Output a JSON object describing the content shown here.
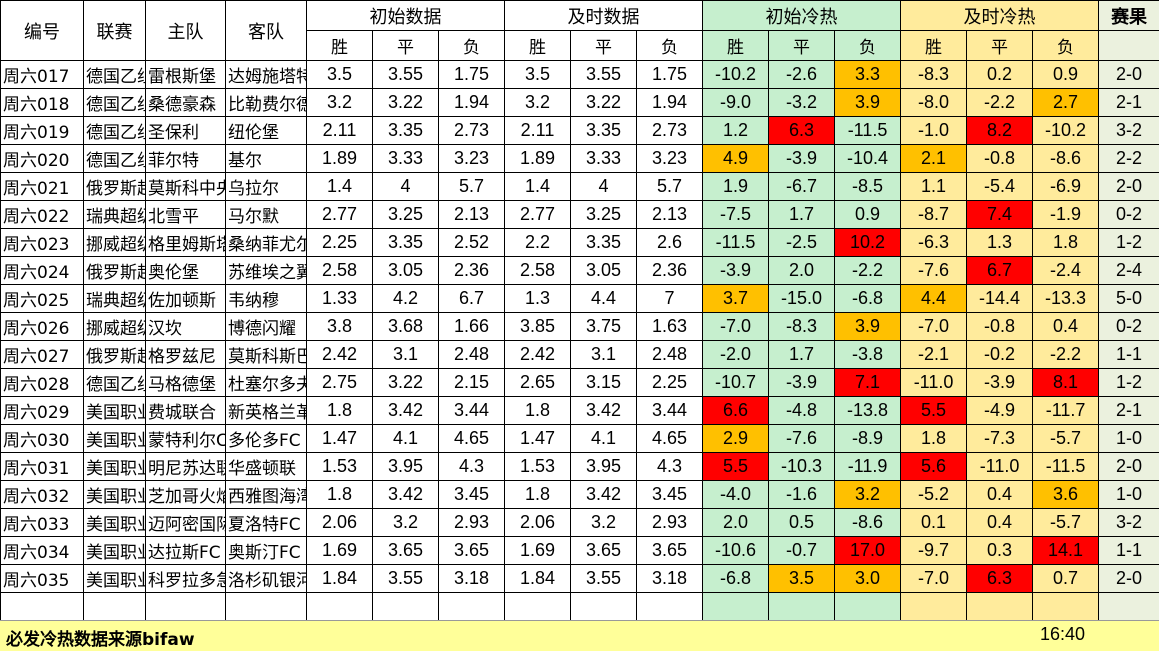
{
  "headers": {
    "id": "编号",
    "league": "联赛",
    "home": "主队",
    "away": "客队",
    "initial": "初始数据",
    "live": "及时数据",
    "initial_heat": "初始冷热",
    "live_heat": "及时冷热",
    "result": "赛果",
    "win": "胜",
    "draw": "平",
    "loss": "负"
  },
  "colors": {
    "green": "#c6efce",
    "yellow": "#ffeb9c",
    "orange": "#ffc000",
    "red": "#ff0000",
    "footer": "#ffff99"
  },
  "rows": [
    {
      "id": "周六017",
      "league": "德国乙组",
      "home": "雷根斯堡",
      "away": "达姆施塔特",
      "iw": "3.5",
      "id_": "3.55",
      "il": "1.75",
      "lw": "3.5",
      "ld": "3.55",
      "ll": "1.75",
      "hiw": "-10.2",
      "hid": "-2.6",
      "hil": "3.3",
      "hlw": "-8.3",
      "hld": "0.2",
      "hll": "0.9",
      "res": "2-0",
      "ci": [
        "",
        "",
        "orange"
      ],
      "cl": [
        "",
        "",
        ""
      ]
    },
    {
      "id": "周六018",
      "league": "德国乙组",
      "home": "桑德豪森",
      "away": "比勒费尔德",
      "iw": "3.2",
      "id_": "3.22",
      "il": "1.94",
      "lw": "3.2",
      "ld": "3.22",
      "ll": "1.94",
      "hiw": "-9.0",
      "hid": "-3.2",
      "hil": "3.9",
      "hlw": "-8.0",
      "hld": "-2.2",
      "hll": "2.7",
      "res": "2-1",
      "ci": [
        "",
        "",
        "orange"
      ],
      "cl": [
        "",
        "",
        "orange"
      ]
    },
    {
      "id": "周六019",
      "league": "德国乙组",
      "home": "圣保利",
      "away": "纽伦堡",
      "iw": "2.11",
      "id_": "3.35",
      "il": "2.73",
      "lw": "2.11",
      "ld": "3.35",
      "ll": "2.73",
      "hiw": "1.2",
      "hid": "6.3",
      "hil": "-11.5",
      "hlw": "-1.0",
      "hld": "8.2",
      "hll": "-10.2",
      "res": "3-2",
      "ci": [
        "",
        "red",
        ""
      ],
      "cl": [
        "",
        "red",
        ""
      ]
    },
    {
      "id": "周六020",
      "league": "德国乙组",
      "home": "菲尔特",
      "away": "基尔",
      "iw": "1.89",
      "id_": "3.33",
      "il": "3.23",
      "lw": "1.89",
      "ld": "3.33",
      "ll": "3.23",
      "hiw": "4.9",
      "hid": "-3.9",
      "hil": "-10.4",
      "hlw": "2.1",
      "hld": "-0.8",
      "hll": "-8.6",
      "res": "2-2",
      "ci": [
        "orange",
        "",
        ""
      ],
      "cl": [
        "orange",
        "",
        ""
      ]
    },
    {
      "id": "周六021",
      "league": "俄罗斯超",
      "home": "莫斯科中央",
      "away": "乌拉尔",
      "iw": "1.4",
      "id_": "4",
      "il": "5.7",
      "lw": "1.4",
      "ld": "4",
      "ll": "5.7",
      "hiw": "1.9",
      "hid": "-6.7",
      "hil": "-8.5",
      "hlw": "1.1",
      "hld": "-5.4",
      "hll": "-6.9",
      "res": "2-0",
      "ci": [
        "",
        "",
        ""
      ],
      "cl": [
        "",
        "",
        ""
      ]
    },
    {
      "id": "周六022",
      "league": "瑞典超级",
      "home": "北雪平",
      "away": "马尔默",
      "iw": "2.77",
      "id_": "3.25",
      "il": "2.13",
      "lw": "2.77",
      "ld": "3.25",
      "ll": "2.13",
      "hiw": "-7.5",
      "hid": "1.7",
      "hil": "0.9",
      "hlw": "-8.7",
      "hld": "7.4",
      "hll": "-1.9",
      "res": "0-2",
      "ci": [
        "",
        "",
        ""
      ],
      "cl": [
        "",
        "red",
        ""
      ]
    },
    {
      "id": "周六023",
      "league": "挪威超级",
      "home": "格里姆斯塔",
      "away": "桑纳菲尤尔",
      "iw": "2.25",
      "id_": "3.35",
      "il": "2.52",
      "lw": "2.2",
      "ld": "3.35",
      "ll": "2.6",
      "hiw": "-11.5",
      "hid": "-2.5",
      "hil": "10.2",
      "hlw": "-6.3",
      "hld": "1.3",
      "hll": "1.8",
      "res": "1-2",
      "ci": [
        "",
        "",
        "red"
      ],
      "cl": [
        "",
        "",
        ""
      ]
    },
    {
      "id": "周六024",
      "league": "俄罗斯超",
      "home": "奥伦堡",
      "away": "苏维埃之翼",
      "iw": "2.58",
      "id_": "3.05",
      "il": "2.36",
      "lw": "2.58",
      "ld": "3.05",
      "ll": "2.36",
      "hiw": "-3.9",
      "hid": "2.0",
      "hil": "-2.2",
      "hlw": "-7.6",
      "hld": "6.7",
      "hll": "-2.4",
      "res": "2-4",
      "ci": [
        "",
        "",
        ""
      ],
      "cl": [
        "",
        "red",
        ""
      ]
    },
    {
      "id": "周六025",
      "league": "瑞典超级",
      "home": "佐加顿斯",
      "away": "韦纳穆",
      "iw": "1.33",
      "id_": "4.2",
      "il": "6.7",
      "lw": "1.3",
      "ld": "4.4",
      "ll": "7",
      "hiw": "3.7",
      "hid": "-15.0",
      "hil": "-6.8",
      "hlw": "4.4",
      "hld": "-14.4",
      "hll": "-13.3",
      "res": "5-0",
      "ci": [
        "orange",
        "",
        ""
      ],
      "cl": [
        "orange",
        "",
        ""
      ]
    },
    {
      "id": "周六026",
      "league": "挪威超级",
      "home": "汉坎",
      "away": "博德闪耀",
      "iw": "3.8",
      "id_": "3.68",
      "il": "1.66",
      "lw": "3.85",
      "ld": "3.75",
      "ll": "1.63",
      "hiw": "-7.0",
      "hid": "-8.3",
      "hil": "3.9",
      "hlw": "-7.0",
      "hld": "-0.8",
      "hll": "0.4",
      "res": "0-2",
      "ci": [
        "",
        "",
        "orange"
      ],
      "cl": [
        "",
        "",
        ""
      ]
    },
    {
      "id": "周六027",
      "league": "俄罗斯超",
      "home": "格罗兹尼",
      "away": "莫斯科斯巴达",
      "iw": "2.42",
      "id_": "3.1",
      "il": "2.48",
      "lw": "2.42",
      "ld": "3.1",
      "ll": "2.48",
      "hiw": "-2.0",
      "hid": "1.7",
      "hil": "-3.8",
      "hlw": "-2.1",
      "hld": "-0.2",
      "hll": "-2.2",
      "res": "1-1",
      "ci": [
        "",
        "",
        ""
      ],
      "cl": [
        "",
        "",
        ""
      ]
    },
    {
      "id": "周六028",
      "league": "德国乙组",
      "home": "马格德堡",
      "away": "杜塞尔多夫",
      "iw": "2.75",
      "id_": "3.22",
      "il": "2.15",
      "lw": "2.65",
      "ld": "3.15",
      "ll": "2.25",
      "hiw": "-10.7",
      "hid": "-3.9",
      "hil": "7.1",
      "hlw": "-11.0",
      "hld": "-3.9",
      "hll": "8.1",
      "res": "1-2",
      "ci": [
        "",
        "",
        "red"
      ],
      "cl": [
        "",
        "",
        "red"
      ]
    },
    {
      "id": "周六029",
      "league": "美国职业",
      "home": "费城联合",
      "away": "新英格兰革命",
      "iw": "1.8",
      "id_": "3.42",
      "il": "3.44",
      "lw": "1.8",
      "ld": "3.42",
      "ll": "3.44",
      "hiw": "6.6",
      "hid": "-4.8",
      "hil": "-13.8",
      "hlw": "5.5",
      "hld": "-4.9",
      "hll": "-11.7",
      "res": "2-1",
      "ci": [
        "red",
        "",
        ""
      ],
      "cl": [
        "red",
        "",
        ""
      ]
    },
    {
      "id": "周六030",
      "league": "美国职业",
      "home": "蒙特利尔CF",
      "away": "多伦多FC",
      "iw": "1.47",
      "id_": "4.1",
      "il": "4.65",
      "lw": "1.47",
      "ld": "4.1",
      "ll": "4.65",
      "hiw": "2.9",
      "hid": "-7.6",
      "hil": "-8.9",
      "hlw": "1.8",
      "hld": "-7.3",
      "hll": "-5.7",
      "res": "1-0",
      "ci": [
        "orange",
        "",
        ""
      ],
      "cl": [
        "",
        "",
        ""
      ]
    },
    {
      "id": "周六031",
      "league": "美国职业",
      "home": "明尼苏达联",
      "away": "华盛顿联",
      "iw": "1.53",
      "id_": "3.95",
      "il": "4.3",
      "lw": "1.53",
      "ld": "3.95",
      "ll": "4.3",
      "hiw": "5.5",
      "hid": "-10.3",
      "hil": "-11.9",
      "hlw": "5.6",
      "hld": "-11.0",
      "hll": "-11.5",
      "res": "2-0",
      "ci": [
        "red",
        "",
        ""
      ],
      "cl": [
        "red",
        "",
        ""
      ]
    },
    {
      "id": "周六032",
      "league": "美国职业",
      "home": "芝加哥火焰",
      "away": "西雅图海湾人",
      "iw": "1.8",
      "id_": "3.42",
      "il": "3.45",
      "lw": "1.8",
      "ld": "3.42",
      "ll": "3.45",
      "hiw": "-4.0",
      "hid": "-1.6",
      "hil": "3.2",
      "hlw": "-5.2",
      "hld": "0.4",
      "hll": "3.6",
      "res": "1-0",
      "ci": [
        "",
        "",
        "orange"
      ],
      "cl": [
        "",
        "",
        "orange"
      ]
    },
    {
      "id": "周六033",
      "league": "美国职业",
      "home": "迈阿密国际",
      "away": "夏洛特FC",
      "iw": "2.06",
      "id_": "3.2",
      "il": "2.93",
      "lw": "2.06",
      "ld": "3.2",
      "ll": "2.93",
      "hiw": "2.0",
      "hid": "0.5",
      "hil": "-8.6",
      "hlw": "0.1",
      "hld": "0.4",
      "hll": "-5.7",
      "res": "3-2",
      "ci": [
        "",
        "",
        ""
      ],
      "cl": [
        "",
        "",
        ""
      ]
    },
    {
      "id": "周六034",
      "league": "美国职业",
      "home": "达拉斯FC",
      "away": "奥斯汀FC",
      "iw": "1.69",
      "id_": "3.65",
      "il": "3.65",
      "lw": "1.69",
      "ld": "3.65",
      "ll": "3.65",
      "hiw": "-10.6",
      "hid": "-0.7",
      "hil": "17.0",
      "hlw": "-9.7",
      "hld": "0.3",
      "hll": "14.1",
      "res": "1-1",
      "ci": [
        "",
        "",
        "red"
      ],
      "cl": [
        "",
        "",
        "red"
      ]
    },
    {
      "id": "周六035",
      "league": "美国职业",
      "home": "科罗拉多急流",
      "away": "洛杉矶银河",
      "iw": "1.84",
      "id_": "3.55",
      "il": "3.18",
      "lw": "1.84",
      "ld": "3.55",
      "ll": "3.18",
      "hiw": "-6.8",
      "hid": "3.5",
      "hil": "3.0",
      "hlw": "-7.0",
      "hld": "6.3",
      "hll": "0.7",
      "res": "2-0",
      "ci": [
        "",
        "orange",
        "orange"
      ],
      "cl": [
        "",
        "red",
        ""
      ]
    }
  ],
  "footer": {
    "text": "必发冷热数据来源bifaw",
    "time": "16:40"
  }
}
